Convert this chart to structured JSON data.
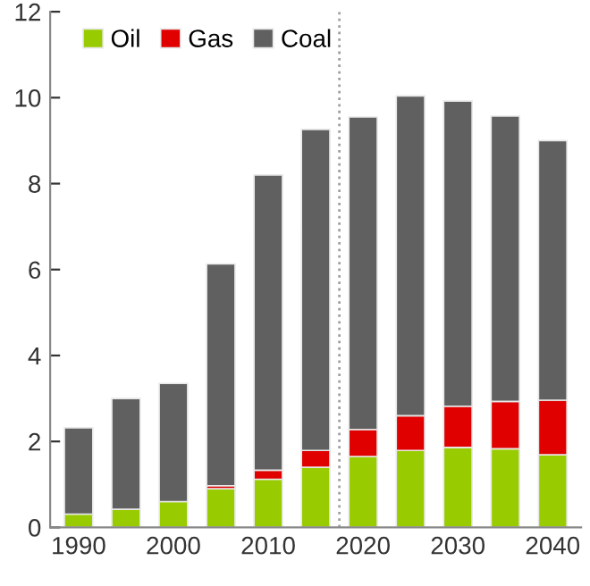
{
  "chart_data": {
    "type": "bar",
    "stacked": true,
    "x": [
      1990,
      1995,
      2000,
      2005,
      2010,
      2015,
      2020,
      2025,
      2030,
      2035,
      2040
    ],
    "series": [
      {
        "name": "Oil",
        "color": "#99cc00",
        "values": [
          0.31,
          0.42,
          0.6,
          0.9,
          1.12,
          1.4,
          1.65,
          1.79,
          1.86,
          1.83,
          1.69
        ]
      },
      {
        "name": "Gas",
        "color": "#e00000",
        "values": [
          null,
          null,
          null,
          0.07,
          0.21,
          0.39,
          0.63,
          0.81,
          0.96,
          1.1,
          1.27
        ]
      },
      {
        "name": "Coal",
        "color": "#606060",
        "values": [
          2.01,
          2.58,
          2.75,
          5.16,
          6.87,
          7.47,
          7.27,
          7.44,
          7.1,
          6.64,
          6.04
        ]
      }
    ],
    "xlim": [
      1987,
      2043
    ],
    "xticks": [
      1990,
      2000,
      2010,
      2020,
      2030,
      2040
    ],
    "ylim": [
      0,
      12
    ],
    "yticks": [
      0,
      2,
      4,
      6,
      8,
      10,
      12
    ],
    "ref_lines": [
      {
        "axis": "x",
        "value": 2017.5,
        "color": "#a0a0a0",
        "line_style": "dotted"
      }
    ],
    "legend": "top left",
    "grid": false
  }
}
